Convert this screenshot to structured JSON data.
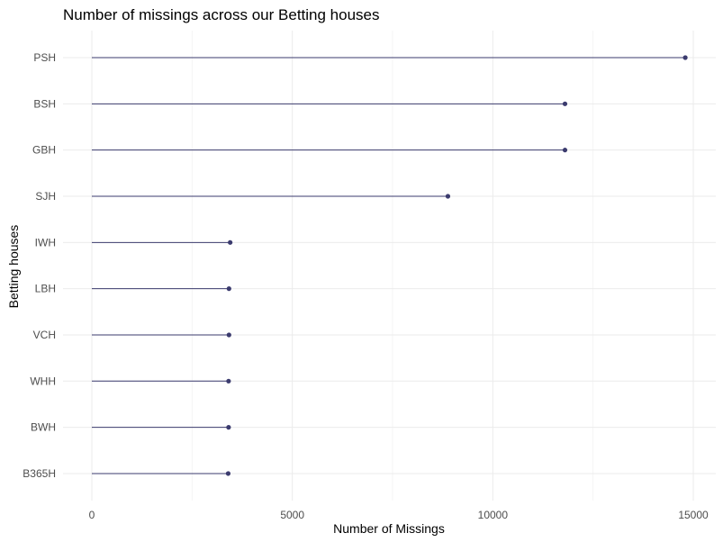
{
  "chart_data": {
    "type": "lollipop",
    "title": "Number of missings across our Betting houses",
    "xlabel": "Number of Missings",
    "ylabel": "Betting houses",
    "xlim": [
      0,
      15000
    ],
    "x_ticks": [
      0,
      5000,
      10000,
      15000
    ],
    "categories": [
      "PSH",
      "BSH",
      "GBH",
      "SJH",
      "IWH",
      "LBH",
      "VCH",
      "WHH",
      "BWH",
      "B365H"
    ],
    "values": [
      14800,
      11800,
      11800,
      8880,
      3450,
      3420,
      3420,
      3410,
      3410,
      3400
    ],
    "grid": true,
    "legend": "none",
    "colors": {
      "stem": "#3b3b6e",
      "point": "#3b3b6e"
    }
  }
}
